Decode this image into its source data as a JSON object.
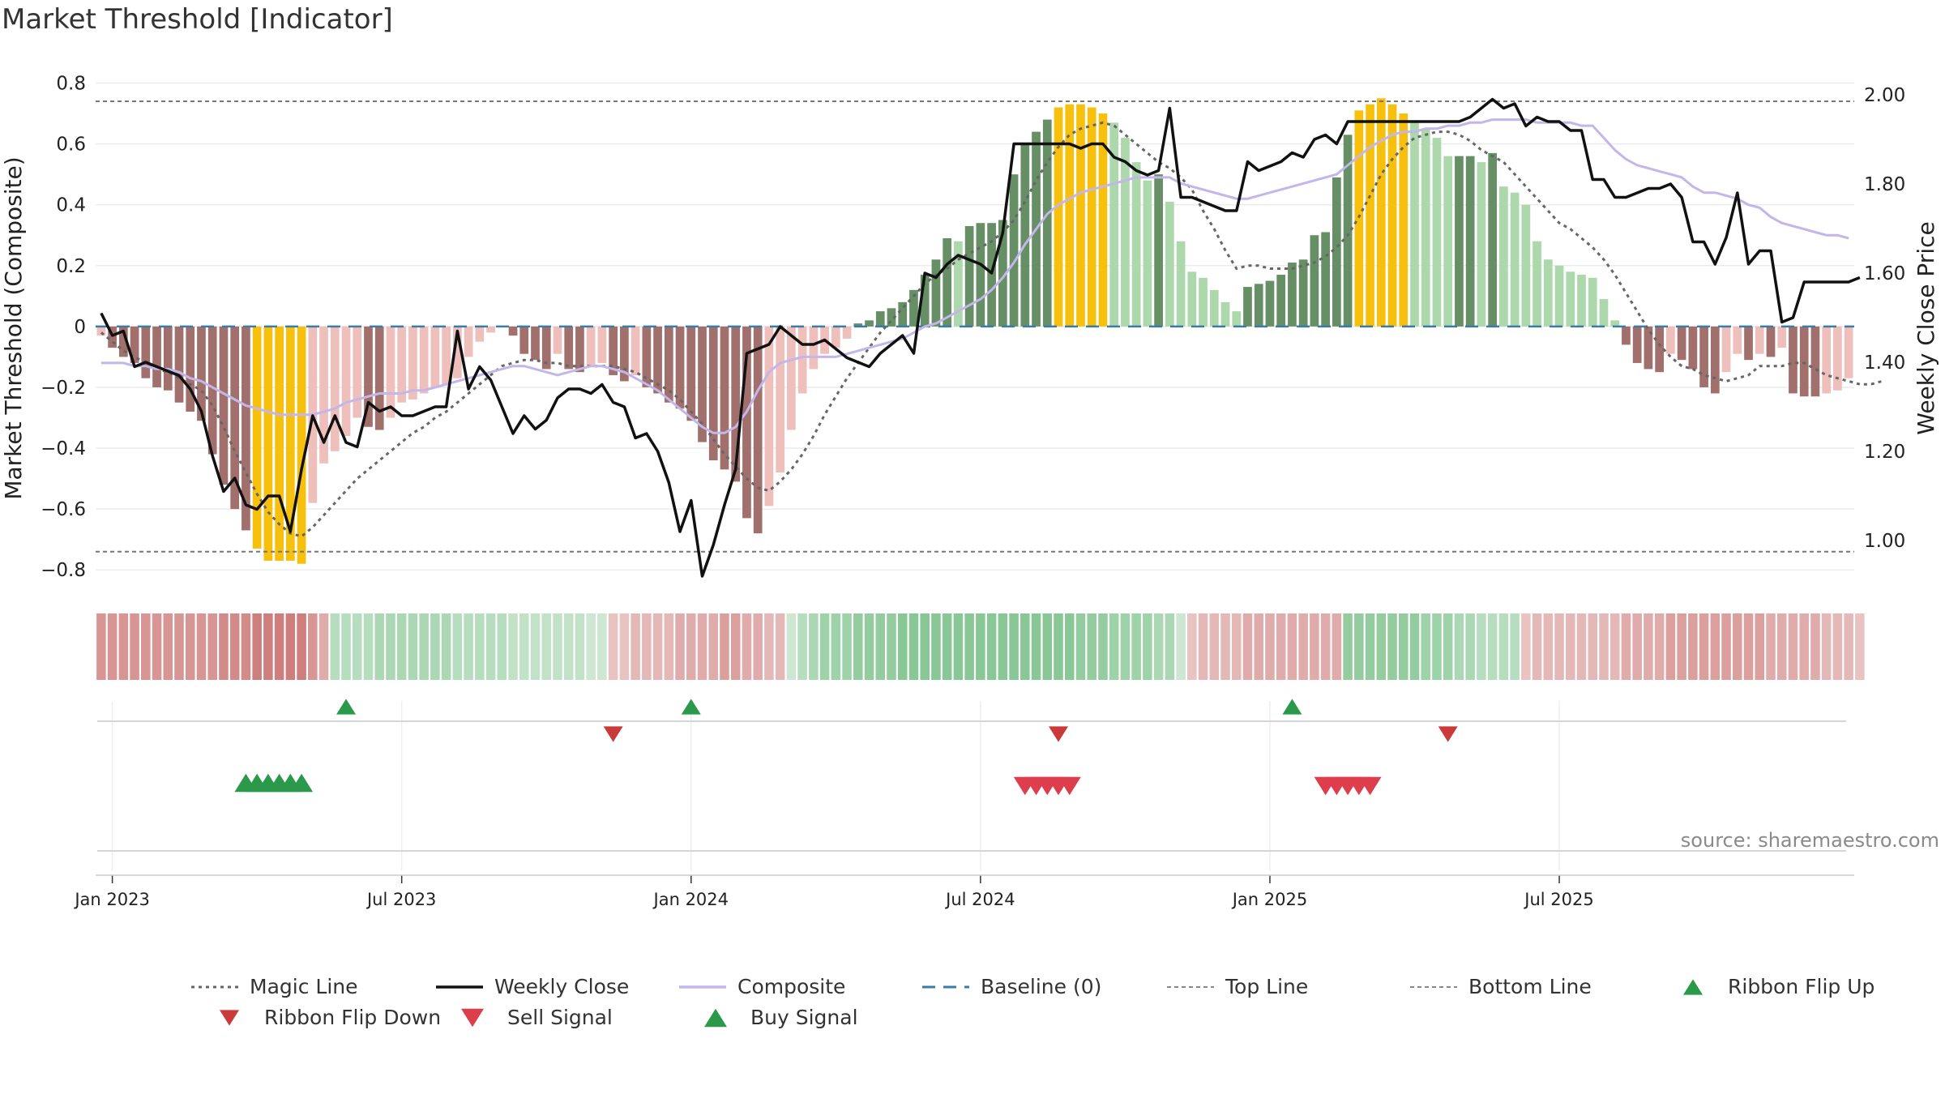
{
  "title": "Market Threshold [Indicator]",
  "source": "source: sharemaestro.com",
  "chart_data": {
    "type": "bar",
    "y_left_label": "Market Threshold (Composite)",
    "y_right_label": "Weekly Close Price",
    "y_left_ticks": [
      "0.8",
      "0.6",
      "0.4",
      "0.2",
      "0",
      "−0.2",
      "−0.4",
      "−0.6",
      "−0.8"
    ],
    "y_left_tick_values": [
      0.8,
      0.6,
      0.4,
      0.2,
      0,
      -0.2,
      -0.4,
      -0.6,
      -0.8
    ],
    "y_left_range": [
      -0.85,
      0.82
    ],
    "y_right_ticks": [
      "2.00",
      "1.80",
      "1.60",
      "1.40",
      "1.20",
      "1.00"
    ],
    "y_right_tick_values": [
      2.0,
      1.8,
      1.6,
      1.4,
      1.2,
      1.0
    ],
    "y_right_range": [
      0.9,
      2.04
    ],
    "x_ticks": [
      "Jan 2023",
      "Jul 2023",
      "Jan 2024",
      "Jul 2024",
      "Jan 2025",
      "Jul 2025"
    ],
    "x_tick_weeks": [
      1,
      27,
      53,
      79,
      105,
      131
    ],
    "top_line": 0.74,
    "bottom_line": -0.74,
    "baseline": 0,
    "composite_bars": [
      -0.03,
      -0.07,
      -0.1,
      -0.12,
      -0.17,
      -0.2,
      -0.21,
      -0.25,
      -0.28,
      -0.31,
      -0.42,
      -0.52,
      -0.6,
      -0.67,
      -0.73,
      -0.77,
      -0.77,
      -0.77,
      -0.78,
      -0.58,
      -0.45,
      -0.41,
      -0.36,
      -0.3,
      -0.33,
      -0.34,
      -0.3,
      -0.25,
      -0.24,
      -0.22,
      -0.2,
      -0.19,
      -0.17,
      -0.1,
      -0.05,
      -0.02,
      0,
      -0.03,
      -0.09,
      -0.11,
      -0.14,
      -0.09,
      -0.14,
      -0.15,
      -0.13,
      -0.12,
      -0.16,
      -0.18,
      -0.16,
      -0.2,
      -0.22,
      -0.25,
      -0.27,
      -0.31,
      -0.38,
      -0.44,
      -0.47,
      -0.51,
      -0.63,
      -0.68,
      -0.59,
      -0.48,
      -0.34,
      -0.22,
      -0.14,
      -0.09,
      -0.07,
      -0.04,
      0.01,
      0.02,
      0.05,
      0.06,
      0.08,
      0.12,
      0.17,
      0.22,
      0.29,
      0.28,
      0.33,
      0.34,
      0.34,
      0.35,
      0.5,
      0.6,
      0.64,
      0.68,
      0.72,
      0.73,
      0.73,
      0.72,
      0.7,
      0.67,
      0.62,
      0.54,
      0.48,
      0.5,
      0.41,
      0.28,
      0.18,
      0.16,
      0.12,
      0.08,
      0.05,
      0.13,
      0.14,
      0.15,
      0.17,
      0.21,
      0.22,
      0.3,
      0.31,
      0.49,
      0.63,
      0.71,
      0.73,
      0.75,
      0.73,
      0.7,
      0.67,
      0.65,
      0.62,
      0.56,
      0.56,
      0.56,
      0.54,
      0.57,
      0.46,
      0.44,
      0.4,
      0.28,
      0.22,
      0.2,
      0.18,
      0.17,
      0.16,
      0.09,
      0.02,
      -0.06,
      -0.12,
      -0.14,
      -0.15,
      -0.09,
      -0.11,
      -0.14,
      -0.2,
      -0.22,
      -0.15,
      -0.09,
      -0.11,
      -0.09,
      -0.1,
      -0.07,
      -0.22,
      -0.23,
      -0.23,
      -0.22,
      -0.21,
      -0.17
    ],
    "series": [
      {
        "name": "Weekly Close",
        "color": "#111111",
        "values": [
          1.51,
          1.46,
          1.47,
          1.39,
          1.4,
          1.39,
          1.38,
          1.37,
          1.34,
          1.29,
          1.19,
          1.11,
          1.14,
          1.08,
          1.07,
          1.1,
          1.1,
          1.02,
          1.16,
          1.28,
          1.22,
          1.28,
          1.22,
          1.21,
          1.31,
          1.29,
          1.3,
          1.28,
          1.28,
          1.29,
          1.3,
          1.3,
          1.47,
          1.34,
          1.39,
          1.36,
          1.3,
          1.24,
          1.28,
          1.25,
          1.27,
          1.32,
          1.34,
          1.34,
          1.33,
          1.35,
          1.31,
          1.3,
          1.23,
          1.24,
          1.2,
          1.13,
          1.02,
          1.09,
          0.92,
          0.99,
          1.08,
          1.16,
          1.42,
          1.43,
          1.44,
          1.48,
          1.46,
          1.44,
          1.44,
          1.45,
          1.43,
          1.41,
          1.4,
          1.39,
          1.42,
          1.44,
          1.46,
          1.42,
          1.6,
          1.59,
          1.62,
          1.64,
          1.63,
          1.62,
          1.6,
          1.69,
          1.89,
          1.89,
          1.89,
          1.89,
          1.89,
          1.89,
          1.88,
          1.89,
          1.89,
          1.86,
          1.85,
          1.83,
          1.82,
          1.83,
          1.97,
          1.77,
          1.77,
          1.76,
          1.75,
          1.74,
          1.74,
          1.85,
          1.83,
          1.84,
          1.85,
          1.87,
          1.86,
          1.9,
          1.91,
          1.89,
          1.94,
          1.94,
          1.94,
          1.94,
          1.94,
          1.94,
          1.94,
          1.94,
          1.94,
          1.94,
          1.94,
          1.95,
          1.97,
          1.99,
          1.97,
          1.98,
          1.93,
          1.95,
          1.94,
          1.94,
          1.92,
          1.92,
          1.81,
          1.81,
          1.77,
          1.77,
          1.78,
          1.79,
          1.79,
          1.8,
          1.77,
          1.67,
          1.67,
          1.62,
          1.68,
          1.78,
          1.62,
          1.65,
          1.65,
          1.49,
          1.5,
          1.58,
          1.58,
          1.58,
          1.58,
          1.58,
          1.59
        ]
      },
      {
        "name": "Composite",
        "color": "#c3b6ea",
        "values": [
          -0.12,
          -0.12,
          -0.12,
          -0.13,
          -0.13,
          -0.14,
          -0.14,
          -0.15,
          -0.17,
          -0.18,
          -0.2,
          -0.22,
          -0.24,
          -0.26,
          -0.27,
          -0.28,
          -0.29,
          -0.29,
          -0.29,
          -0.29,
          -0.28,
          -0.27,
          -0.25,
          -0.24,
          -0.23,
          -0.22,
          -0.22,
          -0.22,
          -0.21,
          -0.21,
          -0.2,
          -0.19,
          -0.18,
          -0.17,
          -0.16,
          -0.15,
          -0.14,
          -0.13,
          -0.13,
          -0.14,
          -0.15,
          -0.16,
          -0.15,
          -0.14,
          -0.13,
          -0.13,
          -0.14,
          -0.15,
          -0.17,
          -0.19,
          -0.21,
          -0.24,
          -0.27,
          -0.3,
          -0.33,
          -0.35,
          -0.35,
          -0.33,
          -0.28,
          -0.21,
          -0.15,
          -0.12,
          -0.11,
          -0.1,
          -0.1,
          -0.1,
          -0.1,
          -0.09,
          -0.08,
          -0.07,
          -0.06,
          -0.05,
          -0.04,
          -0.02,
          0,
          0.01,
          0.03,
          0.05,
          0.07,
          0.09,
          0.12,
          0.16,
          0.21,
          0.27,
          0.32,
          0.37,
          0.4,
          0.42,
          0.44,
          0.45,
          0.46,
          0.47,
          0.48,
          0.49,
          0.49,
          0.49,
          0.49,
          0.47,
          0.46,
          0.45,
          0.44,
          0.43,
          0.42,
          0.42,
          0.43,
          0.44,
          0.45,
          0.46,
          0.47,
          0.48,
          0.49,
          0.5,
          0.53,
          0.56,
          0.59,
          0.61,
          0.63,
          0.64,
          0.64,
          0.65,
          0.65,
          0.66,
          0.66,
          0.67,
          0.67,
          0.68,
          0.68,
          0.68,
          0.68,
          0.67,
          0.67,
          0.67,
          0.67,
          0.66,
          0.66,
          0.62,
          0.58,
          0.55,
          0.53,
          0.52,
          0.51,
          0.5,
          0.49,
          0.46,
          0.44,
          0.44,
          0.43,
          0.42,
          0.4,
          0.39,
          0.36,
          0.34,
          0.33,
          0.32,
          0.31,
          0.3,
          0.3,
          0.29
        ]
      },
      {
        "name": "Magic Line",
        "color": "#666666",
        "values": [
          -0.02,
          -0.05,
          -0.08,
          -0.1,
          -0.12,
          -0.14,
          -0.15,
          -0.17,
          -0.19,
          -0.21,
          -0.26,
          -0.33,
          -0.41,
          -0.48,
          -0.55,
          -0.61,
          -0.65,
          -0.68,
          -0.69,
          -0.66,
          -0.62,
          -0.58,
          -0.54,
          -0.5,
          -0.47,
          -0.44,
          -0.41,
          -0.38,
          -0.35,
          -0.33,
          -0.3,
          -0.28,
          -0.25,
          -0.22,
          -0.19,
          -0.16,
          -0.13,
          -0.12,
          -0.11,
          -0.11,
          -0.12,
          -0.12,
          -0.13,
          -0.13,
          -0.13,
          -0.13,
          -0.13,
          -0.14,
          -0.15,
          -0.17,
          -0.19,
          -0.21,
          -0.24,
          -0.28,
          -0.32,
          -0.37,
          -0.42,
          -0.46,
          -0.5,
          -0.53,
          -0.54,
          -0.51,
          -0.47,
          -0.42,
          -0.36,
          -0.29,
          -0.23,
          -0.17,
          -0.12,
          -0.07,
          -0.02,
          0.02,
          0.06,
          0.1,
          0.14,
          0.17,
          0.19,
          0.22,
          0.24,
          0.26,
          0.28,
          0.31,
          0.35,
          0.41,
          0.48,
          0.54,
          0.59,
          0.63,
          0.65,
          0.66,
          0.67,
          0.66,
          0.63,
          0.6,
          0.57,
          0.54,
          0.52,
          0.49,
          0.45,
          0.38,
          0.32,
          0.25,
          0.19,
          0.2,
          0.2,
          0.19,
          0.19,
          0.19,
          0.2,
          0.21,
          0.23,
          0.26,
          0.3,
          0.36,
          0.43,
          0.5,
          0.55,
          0.59,
          0.62,
          0.63,
          0.64,
          0.64,
          0.63,
          0.61,
          0.58,
          0.56,
          0.54,
          0.5,
          0.46,
          0.42,
          0.38,
          0.34,
          0.32,
          0.29,
          0.26,
          0.22,
          0.17,
          0.11,
          0.05,
          -0.01,
          -0.06,
          -0.1,
          -0.13,
          -0.14,
          -0.16,
          -0.17,
          -0.18,
          -0.17,
          -0.16,
          -0.13,
          -0.13,
          -0.13,
          -0.12,
          -0.12,
          -0.14,
          -0.16,
          -0.17,
          -0.18,
          -0.19,
          -0.19,
          -0.18
        ]
      }
    ],
    "ribbon": [
      -0.6,
      -0.6,
      -0.6,
      -0.6,
      -0.6,
      -0.6,
      -0.6,
      -0.6,
      -0.6,
      -0.6,
      -0.6,
      -0.7,
      -0.7,
      -0.7,
      -0.8,
      -0.8,
      -0.8,
      -0.8,
      -0.8,
      -0.6,
      -0.4,
      0.3,
      0.3,
      0.3,
      0.3,
      0.4,
      0.4,
      0.4,
      0.4,
      0.4,
      0.4,
      0.4,
      0.3,
      0.3,
      0.3,
      0.3,
      0.3,
      0.2,
      0.2,
      0.2,
      0.2,
      0.2,
      0.2,
      0.2,
      0.1,
      0.1,
      -0.2,
      -0.2,
      -0.3,
      -0.3,
      -0.3,
      -0.3,
      -0.4,
      -0.4,
      -0.4,
      -0.4,
      -0.5,
      -0.5,
      -0.4,
      -0.4,
      -0.3,
      -0.3,
      0.1,
      0.3,
      0.4,
      0.5,
      0.5,
      0.5,
      0.6,
      0.6,
      0.6,
      0.6,
      0.7,
      0.7,
      0.7,
      0.7,
      0.7,
      0.7,
      0.7,
      0.7,
      0.7,
      0.7,
      0.7,
      0.7,
      0.7,
      0.7,
      0.7,
      0.7,
      0.6,
      0.6,
      0.6,
      0.5,
      0.5,
      0.5,
      0.5,
      0.4,
      0.4,
      0.1,
      -0.2,
      -0.3,
      -0.3,
      -0.3,
      -0.3,
      -0.4,
      -0.4,
      -0.4,
      -0.4,
      -0.4,
      -0.4,
      -0.4,
      -0.4,
      -0.4,
      0.6,
      0.6,
      0.6,
      0.6,
      0.6,
      0.6,
      0.6,
      0.5,
      0.5,
      0.5,
      0.4,
      0.4,
      0.3,
      0.3,
      0.3,
      0.3,
      -0.2,
      -0.3,
      -0.3,
      -0.3,
      -0.3,
      -0.3,
      -0.3,
      -0.3,
      -0.3,
      -0.4,
      -0.4,
      -0.4,
      -0.4,
      -0.5,
      -0.5,
      -0.5,
      -0.5,
      -0.5,
      -0.5,
      -0.5,
      -0.5,
      -0.5,
      -0.4,
      -0.4,
      -0.4,
      -0.4,
      -0.4,
      -0.3,
      -0.3,
      -0.3,
      -0.2
    ],
    "ribbon_flip_up_weeks": [
      22,
      53,
      107
    ],
    "ribbon_flip_down_weeks": [
      46,
      86,
      121
    ],
    "buy_signal_weeks": [
      13,
      14,
      15,
      16,
      17,
      18
    ],
    "sell_signal_weeks": [
      83,
      84,
      85,
      86,
      87,
      110,
      111,
      112,
      113,
      114
    ],
    "colors": {
      "bar_neg_strong": "#a1706c",
      "bar_neg_weak": "#eebfbb",
      "bar_pos_strong": "#668f66",
      "bar_pos_weak": "#add8ab",
      "bar_extreme": "#f7c00d",
      "ribbon_neg": "#c66866",
      "ribbon_pos": "#66b776",
      "flip_up": "#2a9a4a",
      "flip_down": "#c93a38",
      "buy": "#2a9a4a",
      "sell": "#de3d4c",
      "baseline": "#3a7ca5"
    },
    "legend": [
      {
        "label": "Magic Line",
        "icon": "dotted-line"
      },
      {
        "label": "Weekly Close",
        "icon": "solid-line"
      },
      {
        "label": "Composite",
        "icon": "lavender-line"
      },
      {
        "label": "Baseline (0)",
        "icon": "dashed-line"
      },
      {
        "label": "Top Line",
        "icon": "gray-dashed-line"
      },
      {
        "label": "Bottom Line",
        "icon": "gray-dashed-line"
      },
      {
        "label": "Ribbon Flip Up",
        "icon": "triangle-up"
      },
      {
        "label": "Ribbon Flip Down",
        "icon": "triangle-down"
      },
      {
        "label": "Sell Signal",
        "icon": "triangle-down"
      },
      {
        "label": "Buy Signal",
        "icon": "triangle-up"
      }
    ]
  }
}
